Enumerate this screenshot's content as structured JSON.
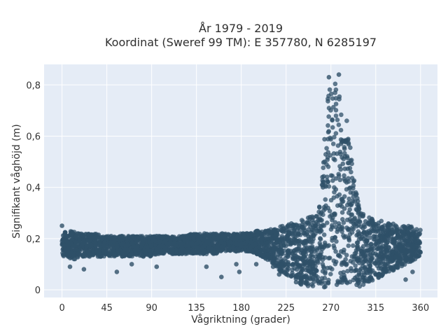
{
  "chart_data": {
    "type": "scatter",
    "title_lines": [
      "År 1979 - 2019",
      "Koordinat (Sweref 99 TM): E 357780, N 6285197"
    ],
    "xlabel": "Vågriktning (grader)",
    "ylabel": "Signifikant våghöjd (m)",
    "xlim": [
      -18,
      377
    ],
    "ylim": [
      -0.03,
      0.88
    ],
    "xticks": [
      0,
      45,
      90,
      135,
      180,
      225,
      270,
      315,
      360
    ],
    "yticks": [
      0,
      0.2,
      0.4,
      0.6,
      0.8
    ],
    "ytick_labels": [
      "0",
      "0,2",
      "0,4",
      "0,6",
      "0,8"
    ],
    "grid": true,
    "plot_background": "#e5ecf6",
    "marker_color": "#2f5068",
    "series": [
      {
        "x": [
          0,
          5,
          10,
          15,
          20,
          25,
          30,
          35,
          40,
          45,
          50,
          55,
          60,
          65,
          70,
          75,
          80,
          85,
          90,
          95,
          100,
          105,
          110,
          115,
          120,
          125,
          130,
          135,
          140,
          145,
          150,
          155,
          160,
          165,
          170,
          175,
          180,
          185,
          190,
          195,
          200,
          205,
          210,
          215,
          220,
          225,
          230,
          235,
          240,
          245,
          250,
          255,
          258,
          260,
          262,
          264,
          266,
          268,
          270,
          272,
          274,
          276,
          278,
          280,
          282,
          284,
          286,
          288,
          290,
          292,
          294,
          296,
          298,
          300,
          305,
          310,
          315,
          320,
          325,
          330,
          335,
          340,
          345,
          350,
          355,
          360
        ],
        "y_low": [
          0.13,
          0.13,
          0.12,
          0.12,
          0.13,
          0.13,
          0.13,
          0.13,
          0.13,
          0.13,
          0.13,
          0.13,
          0.13,
          0.13,
          0.13,
          0.13,
          0.13,
          0.13,
          0.13,
          0.14,
          0.14,
          0.14,
          0.14,
          0.14,
          0.14,
          0.14,
          0.14,
          0.14,
          0.14,
          0.14,
          0.14,
          0.14,
          0.15,
          0.15,
          0.15,
          0.15,
          0.15,
          0.15,
          0.15,
          0.14,
          0.13,
          0.12,
          0.11,
          0.09,
          0.07,
          0.06,
          0.05,
          0.04,
          0.02,
          0.01,
          0.01,
          0.01,
          0.01,
          0.01,
          0.01,
          0.01,
          0.01,
          0.01,
          0.01,
          0.01,
          0.01,
          0.01,
          0.01,
          0.01,
          0.01,
          0.01,
          0.01,
          0.01,
          0.01,
          0.01,
          0.01,
          0.01,
          0.01,
          0.01,
          0.02,
          0.03,
          0.04,
          0.05,
          0.06,
          0.07,
          0.08,
          0.09,
          0.1,
          0.11,
          0.12,
          0.13
        ],
        "y_high": [
          0.23,
          0.23,
          0.23,
          0.22,
          0.22,
          0.22,
          0.22,
          0.22,
          0.21,
          0.21,
          0.21,
          0.21,
          0.21,
          0.21,
          0.21,
          0.21,
          0.21,
          0.21,
          0.21,
          0.21,
          0.21,
          0.21,
          0.21,
          0.21,
          0.21,
          0.21,
          0.22,
          0.22,
          0.22,
          0.22,
          0.22,
          0.22,
          0.22,
          0.22,
          0.22,
          0.22,
          0.22,
          0.22,
          0.22,
          0.23,
          0.23,
          0.23,
          0.24,
          0.24,
          0.25,
          0.25,
          0.26,
          0.27,
          0.27,
          0.28,
          0.29,
          0.3,
          0.32,
          0.36,
          0.48,
          0.62,
          0.75,
          0.8,
          0.82,
          0.82,
          0.81,
          0.8,
          0.78,
          0.76,
          0.73,
          0.7,
          0.66,
          0.6,
          0.54,
          0.48,
          0.42,
          0.37,
          0.33,
          0.31,
          0.29,
          0.28,
          0.27,
          0.27,
          0.26,
          0.26,
          0.26,
          0.25,
          0.25,
          0.25,
          0.24,
          0.24
        ],
        "outliers": [
          [
            0,
            0.25
          ],
          [
            8,
            0.09
          ],
          [
            22,
            0.08
          ],
          [
            55,
            0.07
          ],
          [
            70,
            0.1
          ],
          [
            95,
            0.09
          ],
          [
            145,
            0.09
          ],
          [
            160,
            0.05
          ],
          [
            175,
            0.1
          ],
          [
            178,
            0.07
          ],
          [
            195,
            0.1
          ],
          [
            212,
            0.09
          ],
          [
            218,
            0.06
          ],
          [
            235,
            0.03
          ],
          [
            240,
            0.07
          ],
          [
            262,
            0.4
          ],
          [
            278,
            0.84
          ],
          [
            268,
            0.83
          ],
          [
            318,
            0.05
          ],
          [
            345,
            0.04
          ],
          [
            352,
            0.07
          ]
        ]
      }
    ]
  }
}
